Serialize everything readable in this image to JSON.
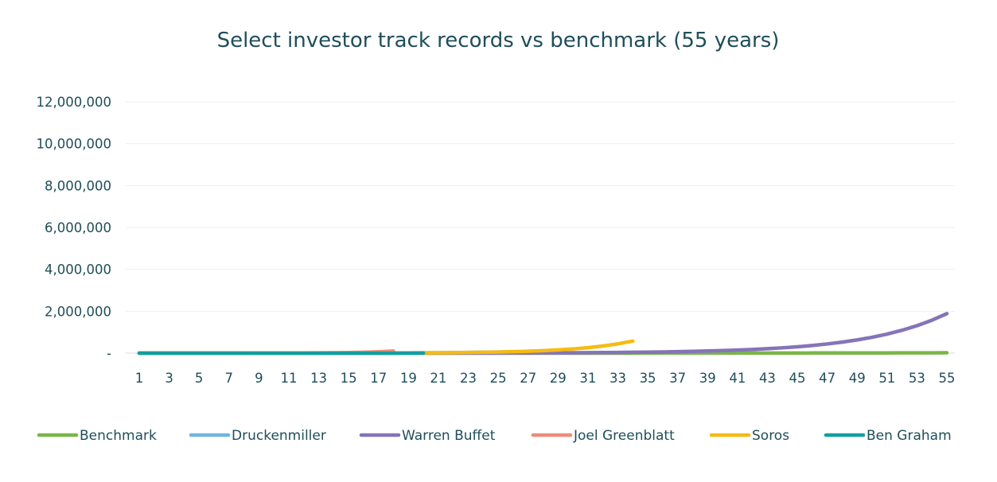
{
  "chart_data": {
    "type": "line",
    "title": "Select investor track records vs benchmark (55 years)",
    "xlabel": "",
    "ylabel": "",
    "x": [
      1,
      2,
      3,
      4,
      5,
      6,
      7,
      8,
      9,
      10,
      11,
      12,
      13,
      14,
      15,
      16,
      17,
      18,
      19,
      20,
      21,
      22,
      23,
      24,
      25,
      26,
      27,
      28,
      29,
      30,
      31,
      32,
      33,
      34,
      35,
      36,
      37,
      38,
      39,
      40,
      41,
      42,
      43,
      44,
      45,
      46,
      47,
      48,
      49,
      50,
      51,
      52,
      53,
      54,
      55
    ],
    "x_tick_labels": [
      "1",
      "3",
      "5",
      "7",
      "9",
      "11",
      "13",
      "15",
      "17",
      "19",
      "21",
      "23",
      "25",
      "27",
      "29",
      "31",
      "33",
      "35",
      "37",
      "39",
      "41",
      "43",
      "45",
      "47",
      "49",
      "51",
      "53",
      "55"
    ],
    "ylim": [
      0,
      12000000
    ],
    "y_tick_labels": [
      "-",
      "2,000,000",
      "4,000,000",
      "6,000,000",
      "8,000,000",
      "10,000,000",
      "12,000,000"
    ],
    "grid": true,
    "legend_position": "bottom",
    "series": [
      {
        "name": "Benchmark",
        "color": "#7ab648",
        "values": [
          100,
          110,
          121,
          133,
          146,
          161,
          177,
          195,
          214,
          236,
          259,
          285,
          314,
          345,
          380,
          418,
          459,
          505,
          556,
          612,
          673,
          740,
          814,
          895,
          985,
          1083,
          1192,
          1311,
          1442,
          1586,
          1745,
          1919,
          2111,
          2322,
          2554,
          2810,
          3091,
          3400,
          3740,
          4114,
          4525,
          4978,
          5476,
          6023,
          6626,
          7288,
          8017,
          8819,
          9700,
          10670,
          11737,
          12911,
          14202,
          15622,
          17184
        ]
      },
      {
        "name": "Druckenmiller",
        "color": "#6fb5e0",
        "values": [
          100,
          130,
          169,
          220,
          286,
          371,
          483,
          627,
          816,
          1060,
          1379,
          1792,
          2330,
          3029,
          3937,
          5119,
          6654,
          8650,
          11245,
          14619,
          19005,
          24706,
          32118,
          41754,
          54280,
          70564,
          null,
          null,
          null,
          null,
          null,
          null,
          null,
          null,
          null,
          null,
          null,
          null,
          null,
          null,
          null,
          null,
          null,
          null,
          null,
          null,
          null,
          null,
          null,
          null,
          null,
          null,
          null,
          null,
          null
        ]
      },
      {
        "name": "Warren Buffet",
        "color": "#8574b8",
        "values": [
          100,
          120,
          144,
          173,
          207,
          249,
          299,
          358,
          430,
          516,
          619,
          743,
          892,
          1070,
          1284,
          1541,
          1849,
          2219,
          2662,
          3195,
          3834,
          4601,
          5521,
          6625,
          7950,
          9540,
          11448,
          13737,
          16485,
          19782,
          23738,
          28486,
          34183,
          41020,
          49224,
          59069,
          70882,
          85059,
          102070,
          122484,
          146981,
          176377,
          211653,
          253983,
          304780,
          365736,
          438883,
          526660,
          631992,
          758391,
          910069,
          1092083,
          1310499,
          1572599,
          1887119
        ]
      },
      {
        "name": "Joel Greenblatt",
        "color": "#ec8c7a",
        "values": [
          100,
          150,
          225,
          338,
          506,
          759,
          1139,
          1709,
          2563,
          3844,
          5767,
          8650,
          12975,
          19462,
          29193,
          43789,
          65684,
          98526,
          null,
          null,
          null,
          null,
          null,
          null,
          null,
          null,
          null,
          null,
          null,
          null,
          null,
          null,
          null,
          null,
          null,
          null,
          null,
          null,
          null,
          null,
          null,
          null,
          null,
          null,
          null,
          null,
          null,
          null,
          null,
          null,
          null,
          null,
          null,
          null,
          null
        ]
      },
      {
        "name": "Soros",
        "color": "#f6bb12",
        "values": [
          100,
          130,
          169,
          220,
          286,
          371,
          483,
          627,
          816,
          1060,
          1379,
          1792,
          2330,
          3029,
          3937,
          5119,
          6654,
          8650,
          11245,
          14619,
          19005,
          24706,
          32118,
          41754,
          54280,
          70564,
          91733,
          119253,
          155029,
          201538,
          262000,
          340600,
          442780,
          575614,
          null,
          null,
          null,
          null,
          null,
          null,
          null,
          null,
          null,
          null,
          null,
          null,
          null,
          null,
          null,
          null,
          null,
          null,
          null,
          null,
          null
        ]
      },
      {
        "name": "Ben Graham",
        "color": "#139ea0",
        "values": [
          100,
          120,
          144,
          173,
          207,
          249,
          299,
          358,
          430,
          516,
          619,
          743,
          892,
          1070,
          1284,
          1541,
          1849,
          2219,
          2662,
          3195,
          null,
          null,
          null,
          null,
          null,
          null,
          null,
          null,
          null,
          null,
          null,
          null,
          null,
          null,
          null,
          null,
          null,
          null,
          null,
          null,
          null,
          null,
          null,
          null,
          null,
          null,
          null,
          null,
          null,
          null,
          null,
          null,
          null,
          null,
          null
        ]
      }
    ]
  }
}
